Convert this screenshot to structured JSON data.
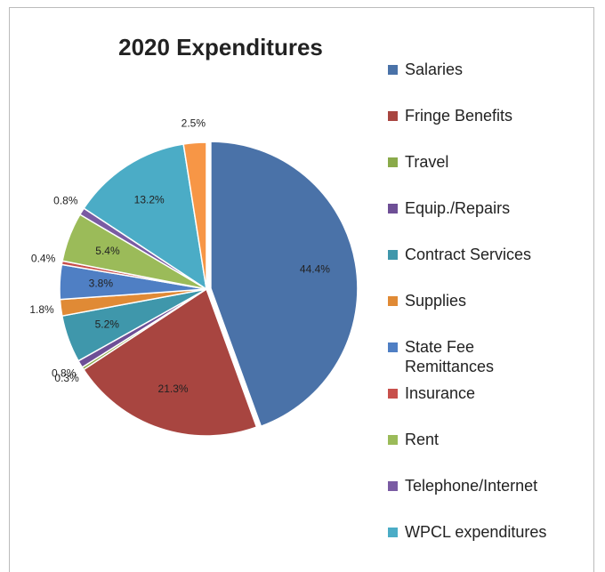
{
  "chart_data": {
    "type": "pie",
    "title": "2020 Expenditures",
    "categories": [
      "Salaries",
      "Fringe Benefits",
      "Travel",
      "Equip./Repairs",
      "Contract Services",
      "Supplies",
      "State Fee Remittances",
      "Insurance",
      "Rent",
      "Telephone/Internet",
      "WPCL expenditures",
      null
    ],
    "values": [
      44.4,
      21.3,
      0.3,
      0.8,
      5.2,
      1.8,
      3.8,
      0.4,
      5.4,
      0.8,
      13.2,
      2.5
    ],
    "value_labels": [
      "44.4%",
      "21.3%",
      "0.3%",
      "0.8%",
      "5.2%",
      "1.8%",
      "3.8%",
      "0.4%",
      "5.4%",
      "0.8%",
      "13.2%",
      "2.5%"
    ],
    "colors": [
      "#4a72a8",
      "#a84540",
      "#8aaa4a",
      "#6e4f96",
      "#3f97ab",
      "#e08a35",
      "#4f7fc4",
      "#c8504c",
      "#9bbb59",
      "#7a5ba3",
      "#4bacc6",
      "#f79646"
    ],
    "legend": "right"
  }
}
